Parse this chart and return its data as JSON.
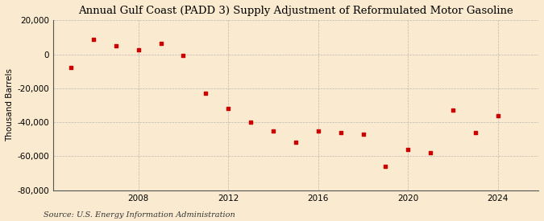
{
  "title": "Annual Gulf Coast (PADD 3) Supply Adjustment of Reformulated Motor Gasoline",
  "ylabel": "Thousand Barrels",
  "source": "Source: U.S. Energy Information Administration",
  "background_color": "#faebd0",
  "plot_bg_color": "#faebd0",
  "marker_color": "#cc0000",
  "years": [
    2005,
    2006,
    2007,
    2008,
    2009,
    2010,
    2011,
    2012,
    2013,
    2014,
    2015,
    2016,
    2017,
    2018,
    2019,
    2020,
    2021,
    2022,
    2023,
    2024
  ],
  "values": [
    -8000,
    9000,
    5000,
    2500,
    6500,
    -500,
    -23000,
    -32000,
    -40000,
    -45000,
    -52000,
    -45000,
    -46000,
    -47000,
    -66000,
    -56000,
    -58000,
    -33000,
    -46000,
    -36000
  ],
  "ylim": [
    -80000,
    20000
  ],
  "yticks": [
    -80000,
    -60000,
    -40000,
    -20000,
    0,
    20000
  ],
  "xticks": [
    2008,
    2012,
    2016,
    2020,
    2024
  ],
  "grid_color": "#aaaaaa",
  "title_fontsize": 9.5,
  "axis_fontsize": 7.5,
  "source_fontsize": 7.0,
  "xlim_left": 2004.2,
  "xlim_right": 2025.8
}
